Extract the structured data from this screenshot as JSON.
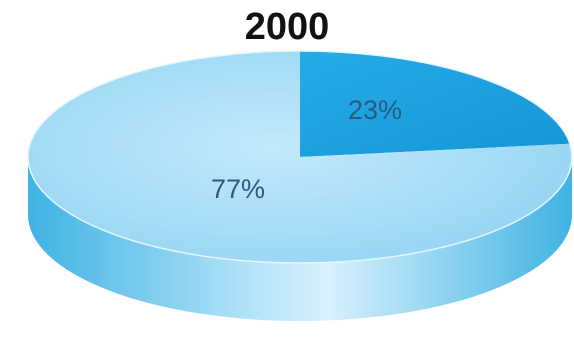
{
  "chart_data": {
    "type": "pie",
    "title": "2000",
    "style": "3d",
    "slices": [
      {
        "label": "77%",
        "value": 77,
        "color": "#a9dcf6",
        "side_color": "#4fbde8"
      },
      {
        "label": "23%",
        "value": 23,
        "color": "#1aa3e3",
        "side_color": "#0f7fba"
      }
    ]
  }
}
